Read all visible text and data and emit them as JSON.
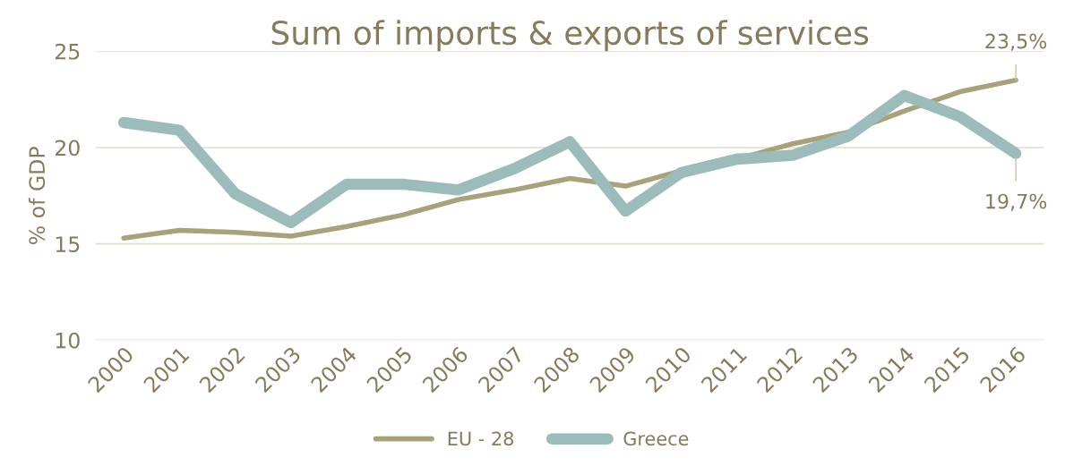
{
  "chart_data": {
    "type": "line",
    "title": "Sum of imports & exports of services",
    "ylabel": "% of GDP",
    "categories": [
      "2000",
      "2001",
      "2002",
      "2003",
      "2004",
      "2005",
      "2006",
      "2007",
      "2008",
      "2009",
      "2010",
      "2011",
      "2012",
      "2013",
      "2014",
      "2015",
      "2016"
    ],
    "series": [
      {
        "name": "EU - 28",
        "color": "#a8a27a",
        "values": [
          15.3,
          15.7,
          15.6,
          15.4,
          15.9,
          16.5,
          17.3,
          17.8,
          18.4,
          18.0,
          18.8,
          19.4,
          20.2,
          20.8,
          21.9,
          22.9,
          23.5
        ]
      },
      {
        "name": "Greece",
        "color": "#9bbcbb",
        "values": [
          21.3,
          20.9,
          17.6,
          16.1,
          18.1,
          18.1,
          17.8,
          18.9,
          20.3,
          16.7,
          18.7,
          19.4,
          19.6,
          20.6,
          22.7,
          21.6,
          19.7
        ]
      }
    ],
    "annotations": [
      {
        "text": "23,5%",
        "x": "2016",
        "y": 23.5
      },
      {
        "text": "19,7%",
        "x": "2016",
        "y": 19.7
      }
    ],
    "ylim": [
      10,
      25
    ],
    "yticks": [
      10,
      15,
      20,
      25
    ],
    "grid": "y",
    "legend": "bottom",
    "marker": "none",
    "line_style": "solid"
  }
}
